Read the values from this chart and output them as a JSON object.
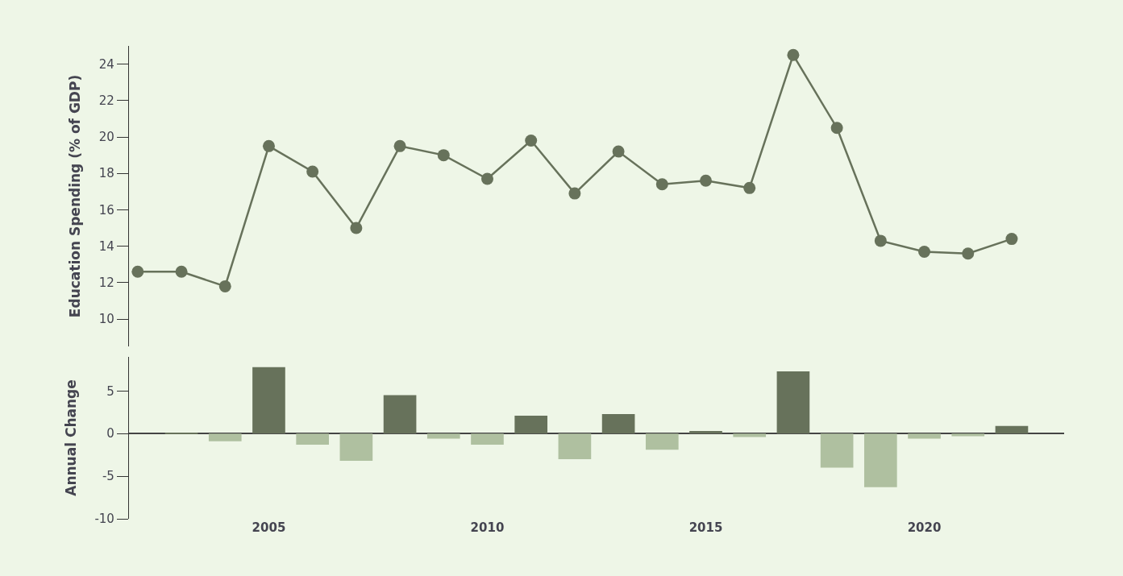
{
  "chart_data": [
    {
      "type": "line",
      "ylabel": "Education Spending (% of GDP)",
      "x": [
        2002,
        2003,
        2004,
        2005,
        2006,
        2007,
        2008,
        2009,
        2010,
        2011,
        2012,
        2013,
        2014,
        2015,
        2016,
        2017,
        2018,
        2019,
        2020,
        2021,
        2022
      ],
      "values": [
        12.6,
        12.6,
        11.8,
        19.5,
        18.1,
        15.0,
        19.5,
        19.0,
        17.7,
        19.8,
        16.9,
        19.2,
        17.4,
        17.6,
        17.2,
        24.5,
        20.5,
        14.3,
        13.7,
        13.6,
        14.4
      ],
      "color": "#67725b",
      "marker": "circle",
      "ylim": [
        8.5,
        25
      ],
      "yticks": [
        10,
        12,
        14,
        16,
        18,
        20,
        22,
        24
      ],
      "tick_labels": "y"
    },
    {
      "type": "bar",
      "ylabel": "Annual Change",
      "x": [
        2003,
        2004,
        2005,
        2006,
        2007,
        2008,
        2009,
        2010,
        2011,
        2012,
        2013,
        2014,
        2015,
        2016,
        2017,
        2018,
        2019,
        2020,
        2021,
        2022
      ],
      "values": [
        0.1,
        -0.9,
        7.8,
        -1.3,
        -3.2,
        4.5,
        -0.6,
        -1.3,
        2.1,
        -3.0,
        2.3,
        -1.9,
        0.3,
        -0.4,
        7.3,
        -4.0,
        -6.3,
        -0.6,
        -0.3,
        0.9
      ],
      "colors": [
        "#67725b",
        "#afc0a0",
        "#67725b",
        "#afc0a0",
        "#afc0a0",
        "#67725b",
        "#afc0a0",
        "#afc0a0",
        "#67725b",
        "#afc0a0",
        "#67725b",
        "#afc0a0",
        "#67725b",
        "#afc0a0",
        "#67725b",
        "#afc0a0",
        "#afc0a0",
        "#afc0a0",
        "#afc0a0",
        "#67725b"
      ],
      "xlim": [
        2001.8,
        2023.2
      ],
      "xticks": [
        2005,
        2010,
        2015,
        2020
      ],
      "ylim": [
        -10,
        9
      ],
      "yticks": [
        -10,
        -5,
        0,
        5
      ]
    }
  ]
}
